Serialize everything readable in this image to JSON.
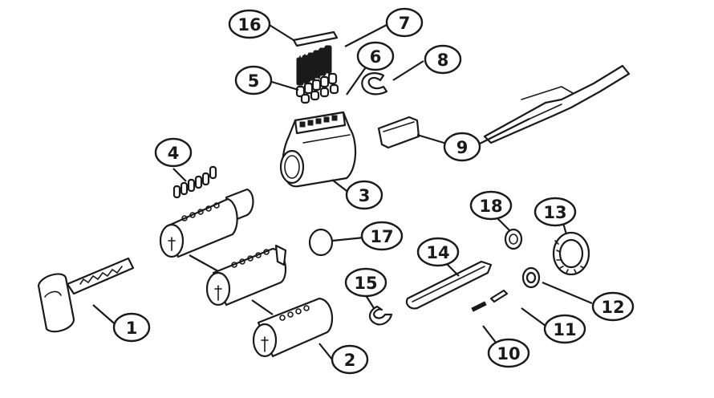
{
  "callouts": [
    {
      "id": "1",
      "label": "1",
      "part": "key"
    },
    {
      "id": "2",
      "label": "2",
      "part": "cylinder-plug-short"
    },
    {
      "id": "3",
      "label": "3",
      "part": "cylinder-housing"
    },
    {
      "id": "4",
      "label": "4",
      "part": "bottom-pins"
    },
    {
      "id": "5",
      "label": "5",
      "part": "driver-pins"
    },
    {
      "id": "6",
      "label": "6",
      "part": "springs"
    },
    {
      "id": "7",
      "label": "7",
      "part": "springs-set"
    },
    {
      "id": "8",
      "label": "8",
      "part": "retaining-clip"
    },
    {
      "id": "9",
      "label": "9",
      "part": "control-sleeve-tool"
    },
    {
      "id": "10",
      "label": "10",
      "part": "small-spring"
    },
    {
      "id": "11",
      "label": "11",
      "part": "pin"
    },
    {
      "id": "12",
      "label": "12",
      "part": "washer"
    },
    {
      "id": "13",
      "label": "13",
      "part": "ring-nut"
    },
    {
      "id": "14",
      "label": "14",
      "part": "tailpiece"
    },
    {
      "id": "15",
      "label": "15",
      "part": "c-clip"
    },
    {
      "id": "16",
      "label": "16",
      "part": "cap-strip"
    },
    {
      "id": "17",
      "label": "17",
      "part": "disc"
    },
    {
      "id": "18",
      "label": "18",
      "part": "cam-screw"
    }
  ]
}
